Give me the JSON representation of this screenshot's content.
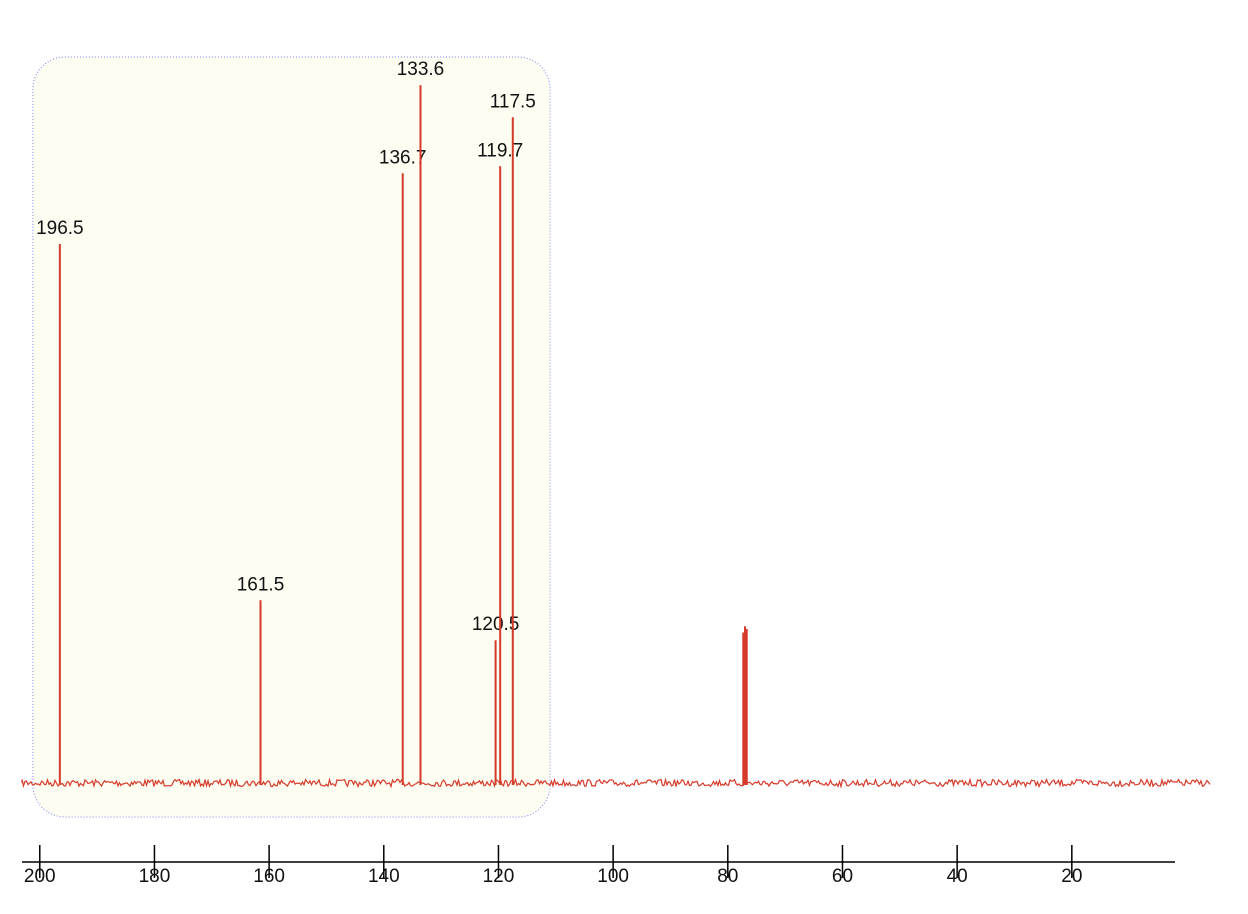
{
  "chart_data": {
    "type": "spectrum",
    "x": [
      196.5,
      161.5,
      136.7,
      133.6,
      120.5,
      119.7,
      117.5
    ],
    "values": [
      77,
      26.1,
      87.1,
      99.7,
      20.4,
      88.1,
      95.1
    ],
    "unlabeled_peaks": {
      "x": [
        77.3,
        77.0,
        76.7
      ],
      "values": [
        21.5,
        22.4,
        22.0
      ]
    },
    "highlight_range": [
      201.2,
      111.0
    ],
    "color": "#d63a2a",
    "xlim": [
      203.1,
      -4.1
    ],
    "ylim": [
      0,
      100
    ],
    "xticks": [
      200,
      180,
      160,
      140,
      120,
      100,
      80,
      60,
      40,
      20
    ]
  }
}
